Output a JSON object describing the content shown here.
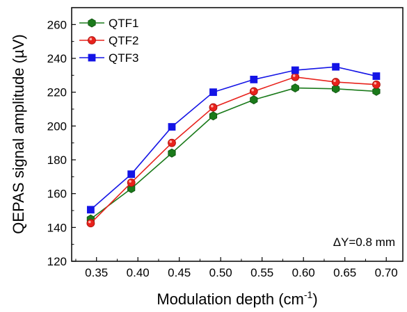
{
  "chart_data": {
    "type": "line",
    "xlabel": "Modulation depth (cm",
    "xlabel_sup": "-1",
    "xlabel_end": ")",
    "ylabel": "QEPAS signal amplitude (µV)",
    "xlim": [
      0.32,
      0.72
    ],
    "ylim": [
      120,
      270
    ],
    "xticks": [
      0.35,
      0.4,
      0.45,
      0.5,
      0.55,
      0.6,
      0.65,
      0.7
    ],
    "xtick_labels": [
      "0.35",
      "0.40",
      "0.45",
      "0.50",
      "0.55",
      "0.60",
      "0.65",
      "0.70"
    ],
    "yticks": [
      120,
      140,
      160,
      180,
      200,
      220,
      240,
      260
    ],
    "ytick_labels": [
      "120",
      "140",
      "160",
      "180",
      "200",
      "220",
      "240",
      "260"
    ],
    "x": [
      0.343,
      0.392,
      0.441,
      0.491,
      0.54,
      0.59,
      0.639,
      0.688
    ],
    "series": [
      {
        "name": "QTF1",
        "color": "#1a7a1a",
        "marker": "hexagon",
        "values": [
          145,
          163,
          184,
          206,
          215.5,
          222.5,
          222,
          220.5
        ]
      },
      {
        "name": "QTF2",
        "color": "#e8221c",
        "marker": "circle",
        "values": [
          142.5,
          166.5,
          190,
          211,
          220.5,
          229,
          226,
          224.5
        ]
      },
      {
        "name": "QTF3",
        "color": "#1414e6",
        "marker": "square",
        "values": [
          150.5,
          171.5,
          199.5,
          220,
          227.5,
          233,
          235,
          229.5
        ]
      }
    ],
    "legend_position": "top-left",
    "annotation": "ΔY=0.8 mm",
    "grid": false
  }
}
